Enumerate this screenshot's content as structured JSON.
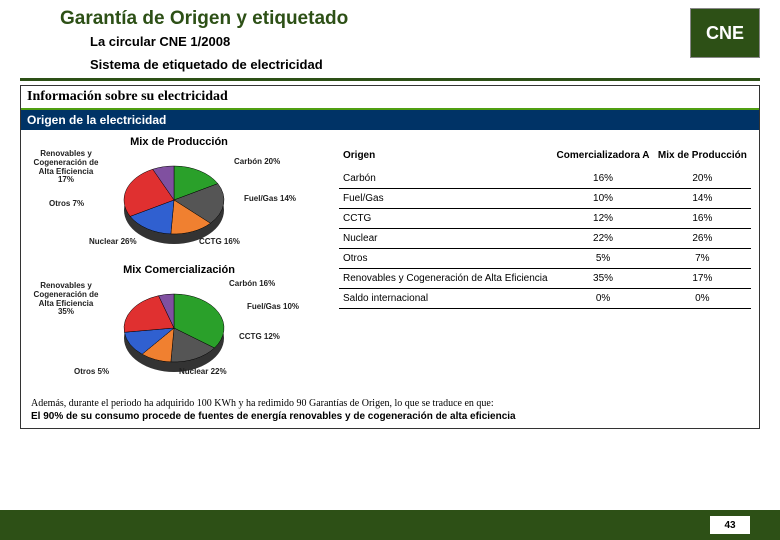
{
  "header": {
    "title": "Garantía de Origen y etiquetado",
    "subtitle1": "La circular CNE 1/2008",
    "subtitle2": "Sistema de etiquetado de electricidad",
    "logo_text": "CNE"
  },
  "panel": {
    "info_title": "Información sobre su electricidad",
    "origin_title": "Origen de la electricidad"
  },
  "chart_prod": {
    "title": "Mix de Producción",
    "slices": [
      {
        "label": "Renovables y Cogeneración de Alta Eficiencia",
        "pct": 17,
        "color": "#2aa02a"
      },
      {
        "label": "Carbón",
        "pct": 20,
        "color": "#555555"
      },
      {
        "label": "Fuel/Gas",
        "pct": 14,
        "color": "#f08030"
      },
      {
        "label": "CCTG",
        "pct": 16,
        "color": "#3060d0"
      },
      {
        "label": "Nuclear",
        "pct": 26,
        "color": "#e03030"
      },
      {
        "label": "Otros",
        "pct": 7,
        "color": "#8050a0"
      }
    ],
    "labels": {
      "renov": "Renovables y\nCogeneración\nde Alta\nEficiencia\n17%",
      "carbon": "Carbón\n20%",
      "fuelgas": "Fuel/Gas\n14%",
      "cctg": "CCTG\n16%",
      "nuclear": "Nuclear\n26%",
      "otros": "Otros\n7%"
    }
  },
  "chart_com": {
    "title": "Mix Comercialización",
    "slices": [
      {
        "label": "Renovables y Cogeneración de Alta Eficiencia",
        "pct": 35,
        "color": "#2aa02a"
      },
      {
        "label": "Carbón",
        "pct": 16,
        "color": "#555555"
      },
      {
        "label": "Fuel/Gas",
        "pct": 10,
        "color": "#f08030"
      },
      {
        "label": "CCTG",
        "pct": 12,
        "color": "#3060d0"
      },
      {
        "label": "Nuclear",
        "pct": 22,
        "color": "#e03030"
      },
      {
        "label": "Otros",
        "pct": 5,
        "color": "#8050a0"
      }
    ],
    "labels": {
      "renov": "Renovables y\nCogeneración\nde Alta\nEficiencia\n35%",
      "carbon": "Carbón\n16%",
      "fuelgas": "Fuel/Gas\n10%",
      "cctg": "CCTG\n12%",
      "nuclear": "Nuclear\n22%",
      "otros": "Otros\n5%"
    }
  },
  "table": {
    "headers": [
      "Origen",
      "Comercializadora A",
      "Mix de Producción"
    ],
    "rows": [
      [
        "Carbón",
        "16%",
        "20%"
      ],
      [
        "Fuel/Gas",
        "10%",
        "14%"
      ],
      [
        "CCTG",
        "12%",
        "16%"
      ],
      [
        "Nuclear",
        "22%",
        "26%"
      ],
      [
        "Otros",
        "5%",
        "7%"
      ],
      [
        "Renovables y Cogeneración de Alta Eficiencia",
        "35%",
        "17%"
      ],
      [
        "Saldo internacional",
        "0%",
        "0%"
      ]
    ]
  },
  "footer": {
    "note1": "Además, durante el periodo ha adquirido 100 KWh y ha redimido 90 Garantías de Origen, lo que se traduce en que:",
    "note2": "El 90% de su consumo procede de fuentes de energía renovables y de cogeneración de alta eficiencia"
  },
  "page_number": "43",
  "colors": {
    "brand_green": "#2d5016",
    "accent_green": "#509f12",
    "origin_bar": "#003366"
  }
}
